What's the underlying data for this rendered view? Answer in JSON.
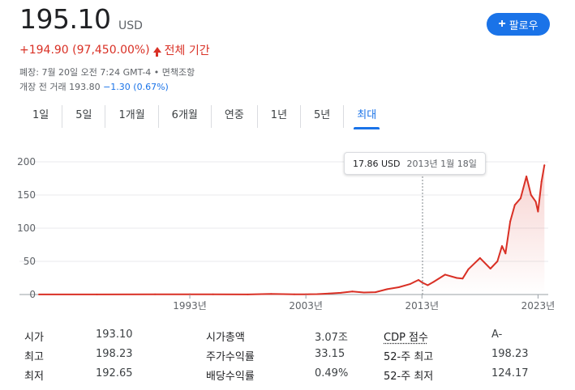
{
  "quote": {
    "price": "195.10",
    "currency": "USD",
    "change": "+194.90 (97,450.00%)",
    "change_period": "전체 기간",
    "meta_line": "폐장: 7월 20일 오전 7:24 GMT-4 • 면책조항",
    "premarket_prefix": "개장 전 거래 193.80",
    "premarket_change": "−1.30 (0.67%)"
  },
  "follow_button": {
    "label": "팔로우"
  },
  "tabs": [
    {
      "label": "1일"
    },
    {
      "label": "5일"
    },
    {
      "label": "1개월"
    },
    {
      "label": "6개월"
    },
    {
      "label": "연중"
    },
    {
      "label": "1년"
    },
    {
      "label": "5년"
    },
    {
      "label": "최대",
      "active": true
    }
  ],
  "tooltip": {
    "value": "17.86 USD",
    "date": "2013년 1월 18일"
  },
  "colors": {
    "line": "#d93025",
    "accent": "#1a73e8",
    "negative": "#1a73e8"
  },
  "chart_data": {
    "type": "area",
    "x": [
      1980,
      1985,
      1990,
      1993,
      1995,
      1998,
      2000,
      2002,
      2003,
      2004,
      2005,
      2006,
      2007,
      2008,
      2009,
      2010,
      2011,
      2012,
      2012.7,
      2013.05,
      2013.5,
      2014,
      2015,
      2016,
      2016.5,
      2017,
      2018,
      2018.9,
      2019.5,
      2019.9,
      2020.2,
      2020.6,
      2021,
      2021.5,
      2022,
      2022.4,
      2022.8,
      2023,
      2023.3,
      2023.55
    ],
    "values": [
      0.1,
      0.15,
      0.3,
      0.35,
      0.3,
      0.15,
      0.9,
      0.25,
      0.35,
      0.6,
      1.5,
      2.5,
      4.5,
      3,
      3.5,
      8,
      11,
      16,
      22,
      17.86,
      14,
      19,
      30,
      25,
      24,
      38,
      55,
      39,
      50,
      73,
      62,
      110,
      135,
      145,
      178,
      150,
      140,
      125,
      170,
      195
    ],
    "xticks": [
      1993,
      2003,
      2013,
      2023
    ],
    "xtick_labels": [
      "1993년",
      "2003년",
      "2013년",
      "2023년"
    ],
    "yticks": [
      0,
      50,
      100,
      150,
      200
    ],
    "xlim": [
      1980,
      2023.6
    ],
    "ylim": [
      0,
      200
    ],
    "grid": true,
    "highlight_x": 2013.05,
    "highlight_value": 17.86
  },
  "stats": [
    [
      {
        "label": "시가"
      },
      {
        "value": "193.10"
      },
      {
        "label": "시가총액"
      },
      {
        "value": "3.07조"
      },
      {
        "label": "CDP 점수",
        "underline": true
      },
      {
        "value": "A-"
      }
    ],
    [
      {
        "label": "최고"
      },
      {
        "value": "198.23"
      },
      {
        "label": "주가수익률"
      },
      {
        "value": "33.15"
      },
      {
        "label": "52-주 최고"
      },
      {
        "value": "198.23"
      }
    ],
    [
      {
        "label": "최저"
      },
      {
        "value": "192.65"
      },
      {
        "label": "배당수익률"
      },
      {
        "value": "0.49%"
      },
      {
        "label": "52-주 최저"
      },
      {
        "value": "124.17"
      }
    ]
  ]
}
